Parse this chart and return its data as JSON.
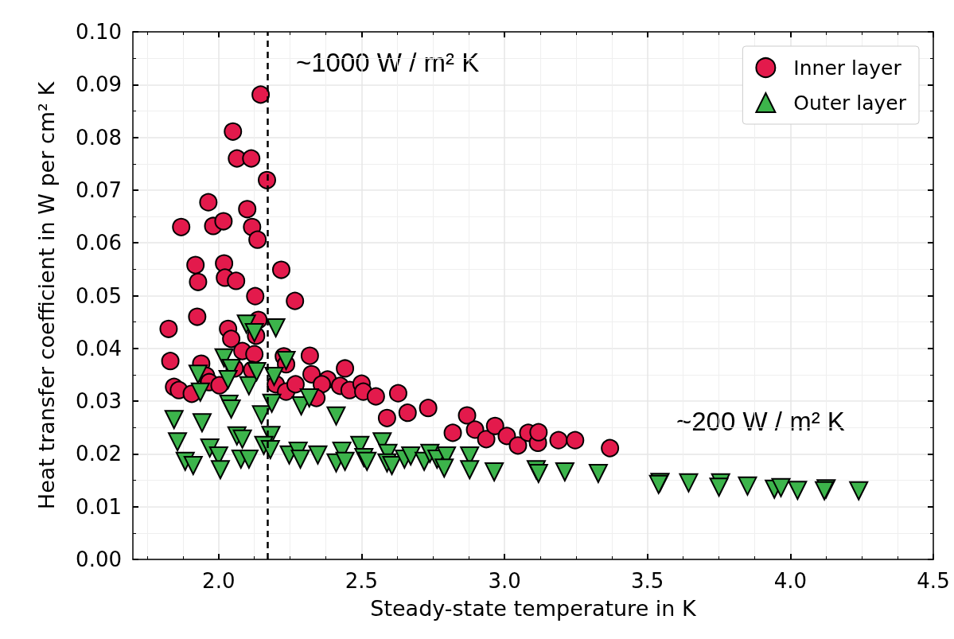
{
  "chart_data": {
    "type": "scatter",
    "xlabel": "Steady-state temperature in K",
    "ylabel": "Heat transfer coefficient in W per cm² K",
    "xlim": [
      1.7,
      4.5
    ],
    "xticks": [
      {
        "value": 2,
        "label": "2.0"
      },
      {
        "value": 2.5,
        "label": "2.5"
      },
      {
        "value": 3,
        "label": "3.0"
      },
      {
        "value": 3.5,
        "label": "3.5"
      },
      {
        "value": 4,
        "label": "4.0"
      },
      {
        "value": 4.5,
        "label": "4.5"
      }
    ],
    "ylim": [
      0,
      0.1
    ],
    "yticks": [
      {
        "value": 0,
        "label": "0.00"
      },
      {
        "value": 0.01,
        "label": "0.01"
      },
      {
        "value": 0.02,
        "label": "0.02"
      },
      {
        "value": 0.03,
        "label": "0.03"
      },
      {
        "value": 0.04,
        "label": "0.04"
      },
      {
        "value": 0.05,
        "label": "0.05"
      },
      {
        "value": 0.06,
        "label": "0.06"
      },
      {
        "value": 0.07,
        "label": "0.07"
      },
      {
        "value": 0.08,
        "label": "0.08"
      },
      {
        "value": 0.09,
        "label": "0.09"
      },
      {
        "value": 0.1,
        "label": "0.10"
      }
    ],
    "grid": true,
    "legend": "top right",
    "ref_lines": [
      {
        "axis": "x",
        "value": 2.17,
        "color": "#000000",
        "line_style": "dashed"
      }
    ],
    "annotations": [
      "~1000 W / m² K",
      "~200 W / m² K"
    ],
    "series": [
      {
        "name": "Inner layer",
        "color": "#e31a4c",
        "marker": "circle",
        "x": [
          1.869,
          1.964,
          1.981,
          2.017,
          1.919,
          1.928,
          2.019,
          2.022,
          2.061,
          2.05,
          2.064,
          2.114,
          2.147,
          2.169,
          2.1,
          2.117,
          2.136,
          2.219,
          2.128,
          2.267,
          1.825,
          1.925,
          1.831,
          1.844,
          1.861,
          1.906,
          1.939,
          1.956,
          1.967,
          2.003,
          2.033,
          2.044,
          2.056,
          2.083,
          2.125,
          2.139,
          2.131,
          2.117,
          2.228,
          2.236,
          2.319,
          2.2,
          2.236,
          2.269,
          2.325,
          2.442,
          2.381,
          2.361,
          2.342,
          2.425,
          2.458,
          2.5,
          2.506,
          2.55,
          2.628,
          2.589,
          2.661,
          2.733,
          2.819,
          2.869,
          2.897,
          2.936,
          2.967,
          3.008,
          3.047,
          3.083,
          3.117,
          3.119,
          3.189,
          3.247,
          3.369
        ],
        "values": [
          0.063,
          0.0677,
          0.0632,
          0.0641,
          0.0558,
          0.0526,
          0.0561,
          0.0534,
          0.0528,
          0.0811,
          0.076,
          0.076,
          0.0881,
          0.0719,
          0.0664,
          0.063,
          0.0606,
          0.0549,
          0.0499,
          0.049,
          0.0437,
          0.046,
          0.0376,
          0.0327,
          0.0321,
          0.0314,
          0.0371,
          0.0348,
          0.0336,
          0.033,
          0.0437,
          0.0418,
          0.0362,
          0.0395,
          0.0389,
          0.0454,
          0.0424,
          0.0359,
          0.0385,
          0.037,
          0.0386,
          0.0332,
          0.0318,
          0.0332,
          0.0351,
          0.0362,
          0.0341,
          0.0332,
          0.0306,
          0.0329,
          0.0321,
          0.0333,
          0.0318,
          0.0309,
          0.0315,
          0.0268,
          0.0278,
          0.0287,
          0.024,
          0.0273,
          0.0246,
          0.0228,
          0.0253,
          0.0234,
          0.0216,
          0.024,
          0.0221,
          0.0241,
          0.0226,
          0.0226,
          0.0211
        ]
      },
      {
        "name": "Outer layer",
        "color": "#3cb44b",
        "marker": "triangle",
        "x": [
          2.097,
          2.125,
          2.2,
          2.019,
          2.044,
          2.033,
          1.928,
          1.936,
          2.106,
          2.133,
          2.236,
          2.194,
          1.844,
          1.942,
          2.036,
          2.044,
          2.15,
          2.186,
          2.289,
          2.317,
          1.856,
          1.969,
          2.0,
          2.064,
          2.083,
          2.183,
          2.158,
          2.181,
          1.883,
          1.911,
          2.006,
          2.078,
          2.106,
          2.247,
          2.278,
          2.286,
          2.411,
          2.347,
          2.411,
          2.431,
          2.442,
          2.494,
          2.508,
          2.519,
          2.572,
          2.592,
          2.589,
          2.606,
          2.65,
          2.672,
          2.719,
          2.739,
          2.764,
          2.797,
          2.789,
          2.878,
          2.878,
          2.964,
          3.111,
          3.119,
          3.211,
          3.328,
          3.544,
          3.539,
          3.644,
          3.756,
          3.75,
          3.85,
          3.944,
          3.967,
          4.025,
          4.125,
          4.119,
          4.239
        ],
        "values": [
          0.0446,
          0.043,
          0.0439,
          0.0382,
          0.0362,
          0.0341,
          0.0351,
          0.0317,
          0.0329,
          0.0356,
          0.0377,
          0.0347,
          0.0265,
          0.0259,
          0.0294,
          0.0285,
          0.0274,
          0.0296,
          0.0291,
          0.0306,
          0.0223,
          0.0211,
          0.0196,
          0.0234,
          0.0228,
          0.0235,
          0.0216,
          0.0208,
          0.0186,
          0.0178,
          0.017,
          0.019,
          0.019,
          0.0198,
          0.0205,
          0.019,
          0.0272,
          0.0198,
          0.0183,
          0.0205,
          0.0186,
          0.0216,
          0.0193,
          0.0186,
          0.0223,
          0.0201,
          0.0183,
          0.0178,
          0.019,
          0.0196,
          0.0186,
          0.0201,
          0.019,
          0.0196,
          0.0173,
          0.0196,
          0.017,
          0.0166,
          0.017,
          0.0163,
          0.0166,
          0.0163,
          0.0146,
          0.0142,
          0.0145,
          0.0145,
          0.0137,
          0.0139,
          0.0133,
          0.0136,
          0.0131,
          0.0134,
          0.013,
          0.013
        ]
      }
    ]
  }
}
